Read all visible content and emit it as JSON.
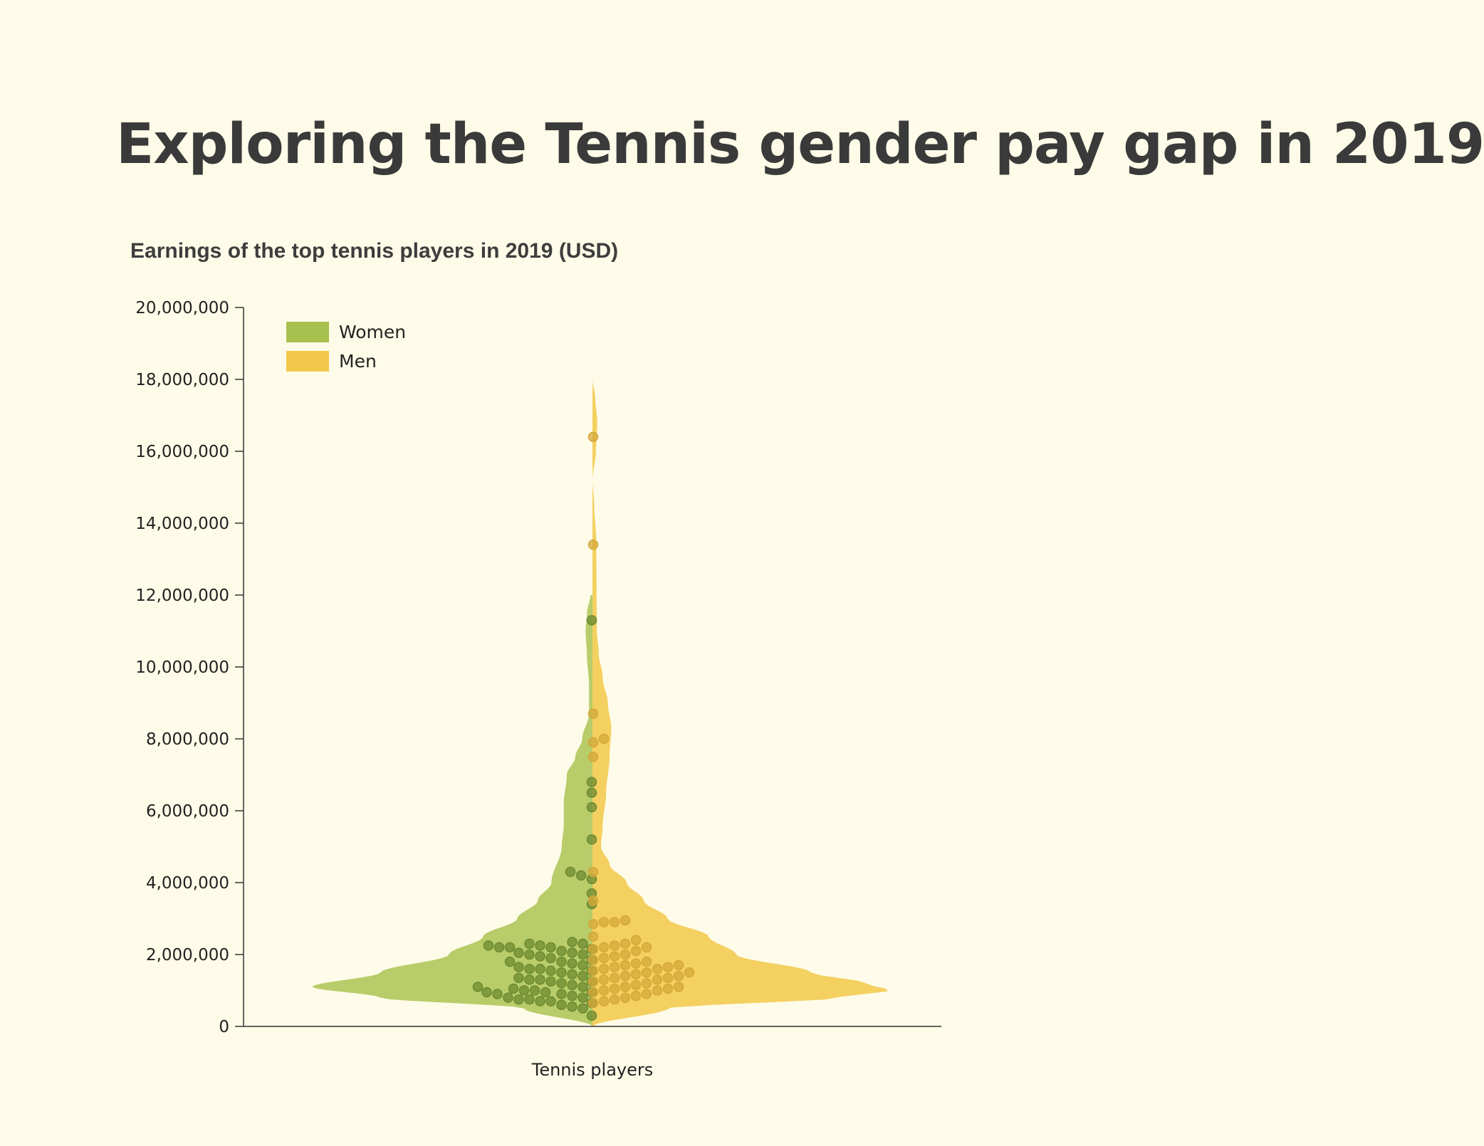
{
  "page": {
    "title": "Exploring the Tennis gender pay gap in 2019"
  },
  "chart_data": {
    "type": "violin",
    "title": "Earnings of the top tennis players in 2019 (USD)",
    "xlabel": "Tennis players",
    "ylabel": "",
    "ylim": [
      0,
      20000000
    ],
    "yticks": [
      0,
      2000000,
      4000000,
      6000000,
      8000000,
      10000000,
      12000000,
      14000000,
      16000000,
      18000000,
      20000000
    ],
    "ytick_labels": [
      "0",
      "2,000,000",
      "4,000,000",
      "6,000,000",
      "8,000,000",
      "10,000,000",
      "12,000,000",
      "14,000,000",
      "16,000,000",
      "18,000,000",
      "20,000,000"
    ],
    "legend_position": "top-left",
    "grid": false,
    "series": [
      {
        "name": "Women",
        "side": "left",
        "color": "#b8cc6a",
        "legend_color": "#a8c04e",
        "point_color": "#6e8a30",
        "density_profile": [
          [
            0,
            0.0
          ],
          [
            500000,
            0.2
          ],
          [
            800000,
            0.62
          ],
          [
            1100000,
            0.82
          ],
          [
            1500000,
            0.62
          ],
          [
            2000000,
            0.42
          ],
          [
            2500000,
            0.32
          ],
          [
            3000000,
            0.22
          ],
          [
            3500000,
            0.16
          ],
          [
            4000000,
            0.12
          ],
          [
            5000000,
            0.09
          ],
          [
            5600000,
            0.084
          ],
          [
            6200000,
            0.084
          ],
          [
            7000000,
            0.075
          ],
          [
            7500000,
            0.05
          ],
          [
            8000000,
            0.03
          ],
          [
            8700000,
            0.01
          ],
          [
            9500000,
            0.01
          ],
          [
            10300000,
            0.016
          ],
          [
            11000000,
            0.02
          ],
          [
            11500000,
            0.016
          ],
          [
            12000000,
            0.006
          ]
        ],
        "values": [
          11300000,
          6800000,
          6500000,
          6100000,
          5200000,
          4300000,
          4200000,
          4100000,
          3700000,
          3400000,
          2350000,
          2300000,
          2300000,
          2250000,
          2250000,
          2200000,
          2200000,
          2200000,
          2150000,
          2100000,
          2050000,
          2050000,
          2000000,
          2000000,
          1950000,
          1900000,
          1850000,
          1800000,
          1800000,
          1750000,
          1700000,
          1650000,
          1600000,
          1600000,
          1550000,
          1550000,
          1500000,
          1450000,
          1400000,
          1350000,
          1300000,
          1300000,
          1250000,
          1250000,
          1200000,
          1150000,
          1100000,
          1100000,
          1050000,
          1000000,
          1000000,
          950000,
          950000,
          950000,
          900000,
          900000,
          850000,
          800000,
          800000,
          750000,
          750000,
          700000,
          700000,
          650000,
          600000,
          550000,
          500000,
          300000
        ]
      },
      {
        "name": "Men",
        "side": "right",
        "color": "#f4d060",
        "legend_color": "#f3c84a",
        "point_color": "#d4a838",
        "density_profile": [
          [
            0,
            0.0
          ],
          [
            500000,
            0.22
          ],
          [
            800000,
            0.72
          ],
          [
            1000000,
            0.87
          ],
          [
            1200000,
            0.8
          ],
          [
            1500000,
            0.64
          ],
          [
            2000000,
            0.42
          ],
          [
            2500000,
            0.34
          ],
          [
            3000000,
            0.22
          ],
          [
            3500000,
            0.15
          ],
          [
            4000000,
            0.1
          ],
          [
            4500000,
            0.05
          ],
          [
            5000000,
            0.025
          ],
          [
            5600000,
            0.03
          ],
          [
            6500000,
            0.04
          ],
          [
            7500000,
            0.05
          ],
          [
            8300000,
            0.055
          ],
          [
            9000000,
            0.045
          ],
          [
            9700000,
            0.03
          ],
          [
            10400000,
            0.018
          ],
          [
            11000000,
            0.013
          ],
          [
            12000000,
            0.012
          ],
          [
            13500000,
            0.011
          ],
          [
            14500000,
            0.005
          ],
          [
            15200000,
            0.0
          ],
          [
            16000000,
            0.01
          ],
          [
            16800000,
            0.014
          ],
          [
            17500000,
            0.008
          ],
          [
            18000000,
            0.0
          ]
        ],
        "values": [
          16400000,
          13400000,
          8700000,
          8000000,
          7900000,
          7500000,
          4300000,
          3500000,
          2950000,
          2900000,
          2900000,
          2850000,
          2500000,
          2400000,
          2300000,
          2250000,
          2200000,
          2200000,
          2150000,
          2100000,
          2000000,
          1950000,
          1900000,
          1850000,
          1800000,
          1750000,
          1700000,
          1700000,
          1650000,
          1650000,
          1600000,
          1600000,
          1550000,
          1500000,
          1500000,
          1450000,
          1400000,
          1400000,
          1350000,
          1350000,
          1300000,
          1300000,
          1250000,
          1200000,
          1150000,
          1100000,
          1100000,
          1050000,
          1050000,
          1000000,
          1000000,
          950000,
          900000,
          850000,
          800000,
          750000,
          700000,
          650000
        ]
      }
    ]
  }
}
